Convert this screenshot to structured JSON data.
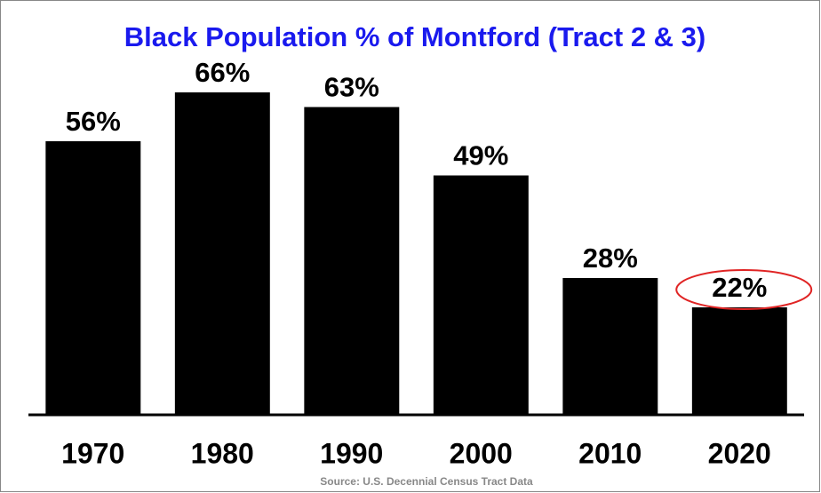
{
  "chart_data": {
    "type": "bar",
    "title": "Black Population % of Montford (Tract 2 & 3)",
    "source": "Source: U.S. Decennial Census Tract Data",
    "categories": [
      "1970",
      "1980",
      "1990",
      "2000",
      "2010",
      "2020"
    ],
    "values": [
      56,
      66,
      63,
      49,
      28,
      22
    ],
    "value_labels": [
      "56%",
      "66%",
      "63%",
      "49%",
      "28%",
      "22%"
    ],
    "color": "#000000",
    "title_color": "#1a1aee",
    "highlight_color": "#e02424",
    "ylim": [
      0,
      84
    ]
  }
}
